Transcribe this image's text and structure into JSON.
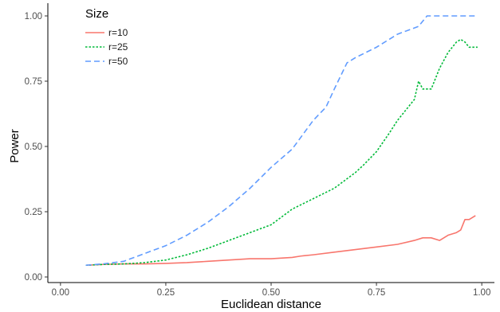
{
  "chart_data": {
    "type": "line",
    "title": "",
    "xlabel": "Euclidean distance",
    "ylabel": "Power",
    "xlim": [
      -0.03,
      1.03
    ],
    "ylim": [
      0.0,
      1.0
    ],
    "x_ticks": [
      0.0,
      0.25,
      0.5,
      0.75,
      1.0
    ],
    "y_ticks": [
      0.0,
      0.25,
      0.5,
      0.75,
      1.0
    ],
    "x_tick_labels": [
      "0.00",
      "0.25",
      "0.50",
      "0.75",
      "1.00"
    ],
    "y_tick_labels": [
      "0.00",
      "0.25",
      "0.50",
      "0.75",
      "1.00"
    ],
    "grid": false,
    "legend": {
      "title": "Size",
      "placement": "top-left"
    },
    "series": [
      {
        "name": "r=10",
        "color": "#F8766D",
        "dash": "solid",
        "x": [
          0.06,
          0.1,
          0.15,
          0.2,
          0.25,
          0.3,
          0.35,
          0.4,
          0.45,
          0.5,
          0.55,
          0.57,
          0.6,
          0.65,
          0.7,
          0.75,
          0.8,
          0.84,
          0.86,
          0.88,
          0.9,
          0.92,
          0.94,
          0.95,
          0.96,
          0.97,
          0.985
        ],
        "y": [
          0.045,
          0.048,
          0.05,
          0.05,
          0.052,
          0.055,
          0.06,
          0.065,
          0.07,
          0.07,
          0.075,
          0.08,
          0.085,
          0.095,
          0.105,
          0.115,
          0.125,
          0.14,
          0.15,
          0.15,
          0.14,
          0.16,
          0.17,
          0.18,
          0.22,
          0.22,
          0.235
        ]
      },
      {
        "name": "r=25",
        "color": "#00BA38",
        "dash": "dotted",
        "x": [
          0.06,
          0.1,
          0.15,
          0.2,
          0.25,
          0.3,
          0.35,
          0.4,
          0.45,
          0.5,
          0.55,
          0.6,
          0.65,
          0.7,
          0.72,
          0.75,
          0.78,
          0.8,
          0.82,
          0.84,
          0.85,
          0.86,
          0.88,
          0.9,
          0.92,
          0.94,
          0.95,
          0.96,
          0.97,
          0.99
        ],
        "y": [
          0.045,
          0.048,
          0.05,
          0.055,
          0.065,
          0.085,
          0.11,
          0.14,
          0.17,
          0.2,
          0.26,
          0.3,
          0.34,
          0.4,
          0.43,
          0.48,
          0.55,
          0.6,
          0.64,
          0.68,
          0.75,
          0.72,
          0.72,
          0.8,
          0.86,
          0.9,
          0.91,
          0.9,
          0.88,
          0.88
        ]
      },
      {
        "name": "r=50",
        "color": "#619CFF",
        "dash": "dashed",
        "x": [
          0.06,
          0.1,
          0.15,
          0.2,
          0.25,
          0.3,
          0.35,
          0.4,
          0.45,
          0.5,
          0.55,
          0.6,
          0.63,
          0.65,
          0.68,
          0.7,
          0.75,
          0.8,
          0.85,
          0.87,
          0.9,
          0.95,
          0.99
        ],
        "y": [
          0.045,
          0.05,
          0.06,
          0.09,
          0.12,
          0.16,
          0.21,
          0.27,
          0.34,
          0.42,
          0.49,
          0.6,
          0.65,
          0.72,
          0.82,
          0.84,
          0.88,
          0.93,
          0.96,
          1.0,
          1.0,
          1.0,
          1.0
        ]
      }
    ]
  }
}
